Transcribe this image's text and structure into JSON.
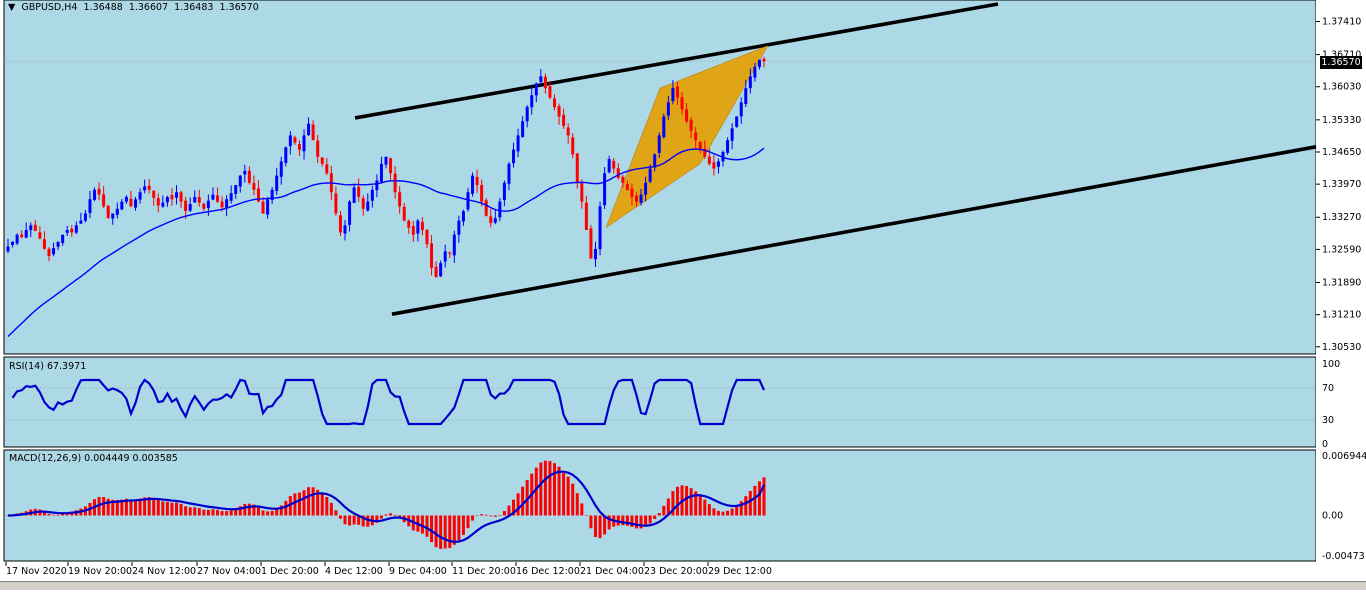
{
  "header": {
    "triangle": "▼",
    "symbol": "GBPUSD,H4",
    "open": "1.36488",
    "high": "1.36607",
    "low": "1.36483",
    "close": "1.36570"
  },
  "current_price": "1.36570",
  "rsi_label": "RSI(14) 67.3971",
  "macd_label": "MACD(12,26,9) 0.004449 0.003585",
  "colors": {
    "background": "#add8e6",
    "bull_candle": "#0000ff",
    "bear_candle": "#ff0000",
    "moving_average": "#0000ff",
    "channel": "#000000",
    "wedge": "#e6a000",
    "rsi_line": "#0000cd",
    "macd_hist": "#ff0000",
    "macd_signal": "#0000cd"
  },
  "chart_data": [
    {
      "type": "candlestick",
      "title": "GBPUSD,H4",
      "y_ticks": [
        "1.37410",
        "1.36710",
        "1.36030",
        "1.35330",
        "1.34650",
        "1.33970",
        "1.33270",
        "1.32590",
        "1.31890",
        "1.31210",
        "1.30530"
      ],
      "x_ticks": [
        "17 Nov 2020",
        "19 Nov 20:00",
        "24 Nov 12:00",
        "27 Nov 04:00",
        "1 Dec 20:00",
        "4 Dec 12:00",
        "9 Dec 04:00",
        "11 Dec 20:00",
        "16 Dec 12:00",
        "21 Dec 04:00",
        "23 Dec 20:00",
        "29 Dec 12:00"
      ],
      "ylim": [
        1.3042,
        1.3778
      ],
      "closes": [
        1.3265,
        1.3275,
        1.329,
        1.3285,
        1.33,
        1.331,
        1.3298,
        1.3282,
        1.326,
        1.3245,
        1.3262,
        1.3275,
        1.329,
        1.33,
        1.3295,
        1.331,
        1.332,
        1.3335,
        1.3365,
        1.3385,
        1.3375,
        1.335,
        1.3325,
        1.3335,
        1.3345,
        1.336,
        1.337,
        1.335,
        1.3365,
        1.338,
        1.3392,
        1.3385,
        1.3368,
        1.3352,
        1.3358,
        1.337,
        1.3365,
        1.338,
        1.336,
        1.334,
        1.3355,
        1.337,
        1.3358,
        1.3345,
        1.3362,
        1.3375,
        1.336,
        1.3348,
        1.3365,
        1.3378,
        1.3395,
        1.3415,
        1.3425,
        1.34,
        1.3385,
        1.336,
        1.3335,
        1.3365,
        1.3385,
        1.3415,
        1.3445,
        1.3475,
        1.35,
        1.3485,
        1.347,
        1.35,
        1.3525,
        1.349,
        1.3455,
        1.344,
        1.342,
        1.338,
        1.3335,
        1.3295,
        1.331,
        1.336,
        1.339,
        1.337,
        1.3345,
        1.336,
        1.3385,
        1.3405,
        1.344,
        1.3455,
        1.342,
        1.338,
        1.335,
        1.332,
        1.3305,
        1.329,
        1.332,
        1.33,
        1.327,
        1.322,
        1.32,
        1.323,
        1.3255,
        1.325,
        1.329,
        1.332,
        1.334,
        1.338,
        1.3415,
        1.3395,
        1.336,
        1.333,
        1.3315,
        1.3325,
        1.336,
        1.34,
        1.344,
        1.347,
        1.35,
        1.353,
        1.356,
        1.3585,
        1.361,
        1.3625,
        1.36,
        1.358,
        1.356,
        1.354,
        1.352,
        1.35,
        1.346,
        1.34,
        1.336,
        1.33,
        1.324,
        1.326,
        1.335,
        1.342,
        1.345,
        1.343,
        1.341,
        1.34,
        1.3385,
        1.337,
        1.336,
        1.3375,
        1.34,
        1.343,
        1.346,
        1.35,
        1.354,
        1.357,
        1.36,
        1.358,
        1.3555,
        1.353,
        1.351,
        1.349,
        1.347,
        1.3455,
        1.344,
        1.343,
        1.3445,
        1.3465,
        1.349,
        1.3515,
        1.354,
        1.357,
        1.36,
        1.3625,
        1.3645,
        1.366,
        1.3657
      ],
      "series": [
        {
          "name": "RSI(14)",
          "last": 67.3971,
          "y_ticks": [
            "100",
            "70",
            "30",
            "0"
          ],
          "levels": [
            70,
            30
          ]
        },
        {
          "name": "MACD(12,26,9)",
          "macd": 0.004449,
          "signal": 0.003585,
          "y_ticks": [
            "0.006944",
            "0.00",
            "-0.00473"
          ]
        }
      ],
      "grid": false
    }
  ]
}
